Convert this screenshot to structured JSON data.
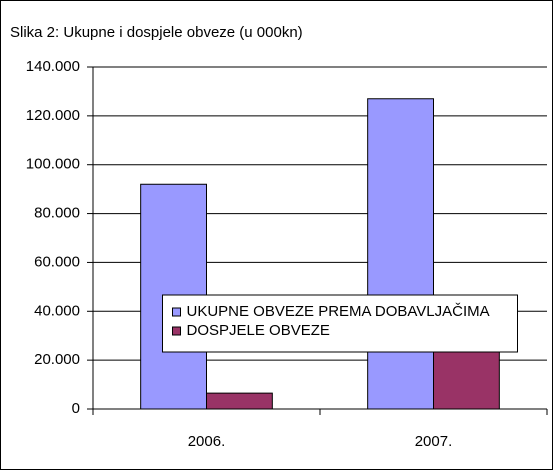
{
  "chart_data": {
    "type": "bar",
    "title": "Slika 2: Ukupne i dospjele obveze (u 000kn)",
    "categories": [
      "2006.",
      "2007."
    ],
    "series": [
      {
        "name": "UKUPNE OBVEZE PREMA DOBAVLJAČIMA",
        "color": "#9999ff",
        "values": [
          92000,
          127000
        ]
      },
      {
        "name": "DOSPJELE OBVEZE",
        "color": "#993366",
        "values": [
          6500,
          25000
        ]
      }
    ],
    "ylim": [
      0,
      140000
    ],
    "yticks": [
      0,
      {
        "value": 20000,
        "label": "20.000"
      },
      {
        "value": 40000,
        "label": "40.000"
      },
      {
        "value": 60000,
        "label": "60.000"
      },
      {
        "value": 80000,
        "label": "80.000"
      },
      {
        "value": 100000,
        "label": "100.000"
      },
      {
        "value": 120000,
        "label": "120.000"
      },
      {
        "value": 140000,
        "label": "140.000"
      }
    ],
    "grid": true,
    "legend": "center"
  }
}
